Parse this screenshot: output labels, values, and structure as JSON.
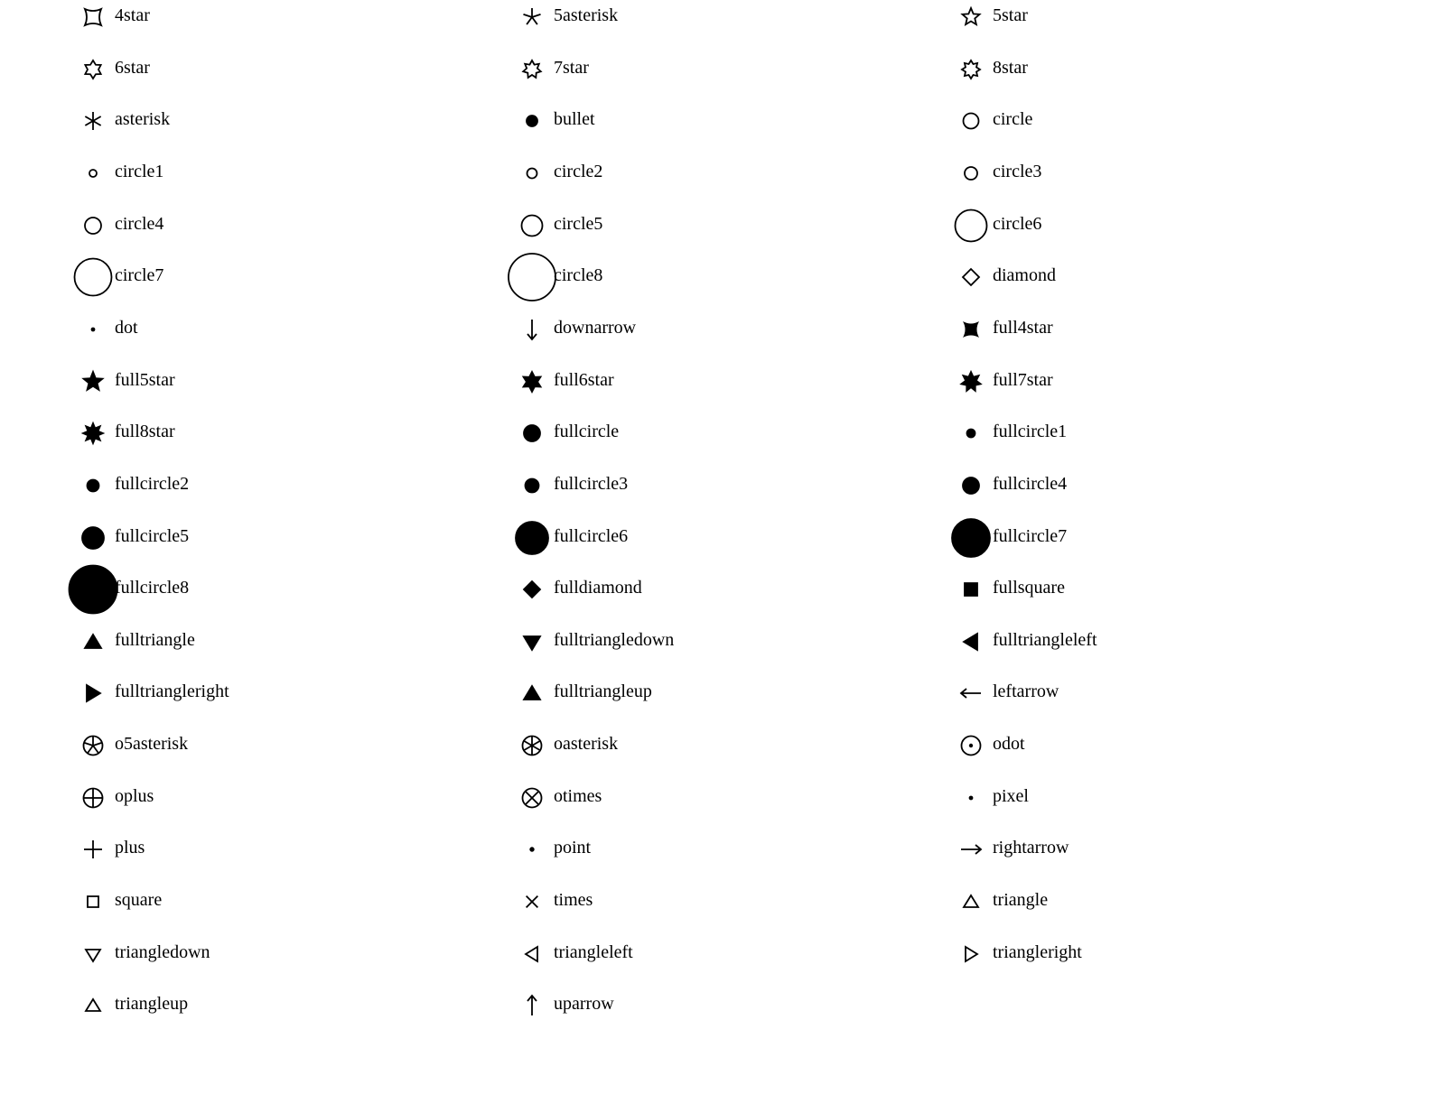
{
  "markers": [
    {
      "label": "4star"
    },
    {
      "label": "5asterisk"
    },
    {
      "label": "5star"
    },
    {
      "label": "6star"
    },
    {
      "label": "7star"
    },
    {
      "label": "8star"
    },
    {
      "label": "asterisk"
    },
    {
      "label": "bullet"
    },
    {
      "label": "circle"
    },
    {
      "label": "circle1"
    },
    {
      "label": "circle2"
    },
    {
      "label": "circle3"
    },
    {
      "label": "circle4"
    },
    {
      "label": "circle5"
    },
    {
      "label": "circle6"
    },
    {
      "label": "circle7"
    },
    {
      "label": "circle8"
    },
    {
      "label": "diamond"
    },
    {
      "label": "dot"
    },
    {
      "label": "downarrow"
    },
    {
      "label": "full4star"
    },
    {
      "label": "full5star"
    },
    {
      "label": "full6star"
    },
    {
      "label": "full7star"
    },
    {
      "label": "full8star"
    },
    {
      "label": "fullcircle"
    },
    {
      "label": "fullcircle1"
    },
    {
      "label": "fullcircle2"
    },
    {
      "label": "fullcircle3"
    },
    {
      "label": "fullcircle4"
    },
    {
      "label": "fullcircle5"
    },
    {
      "label": "fullcircle6"
    },
    {
      "label": "fullcircle7"
    },
    {
      "label": "fullcircle8"
    },
    {
      "label": "fulldiamond"
    },
    {
      "label": "fullsquare"
    },
    {
      "label": "fulltriangle"
    },
    {
      "label": "fulltriangledown"
    },
    {
      "label": "fulltriangleleft"
    },
    {
      "label": "fulltriangleright"
    },
    {
      "label": "fulltriangleup"
    },
    {
      "label": "leftarrow"
    },
    {
      "label": "o5asterisk"
    },
    {
      "label": "oasterisk"
    },
    {
      "label": "odot"
    },
    {
      "label": "oplus"
    },
    {
      "label": "otimes"
    },
    {
      "label": "pixel"
    },
    {
      "label": "plus"
    },
    {
      "label": "point"
    },
    {
      "label": "rightarrow"
    },
    {
      "label": "square"
    },
    {
      "label": "times"
    },
    {
      "label": "triangle"
    },
    {
      "label": "triangledown"
    },
    {
      "label": "triangleleft"
    },
    {
      "label": "triangleright"
    },
    {
      "label": "triangleup"
    },
    {
      "label": "uparrow"
    }
  ],
  "colors": {
    "ink": "#000000",
    "background": "#ffffff"
  }
}
